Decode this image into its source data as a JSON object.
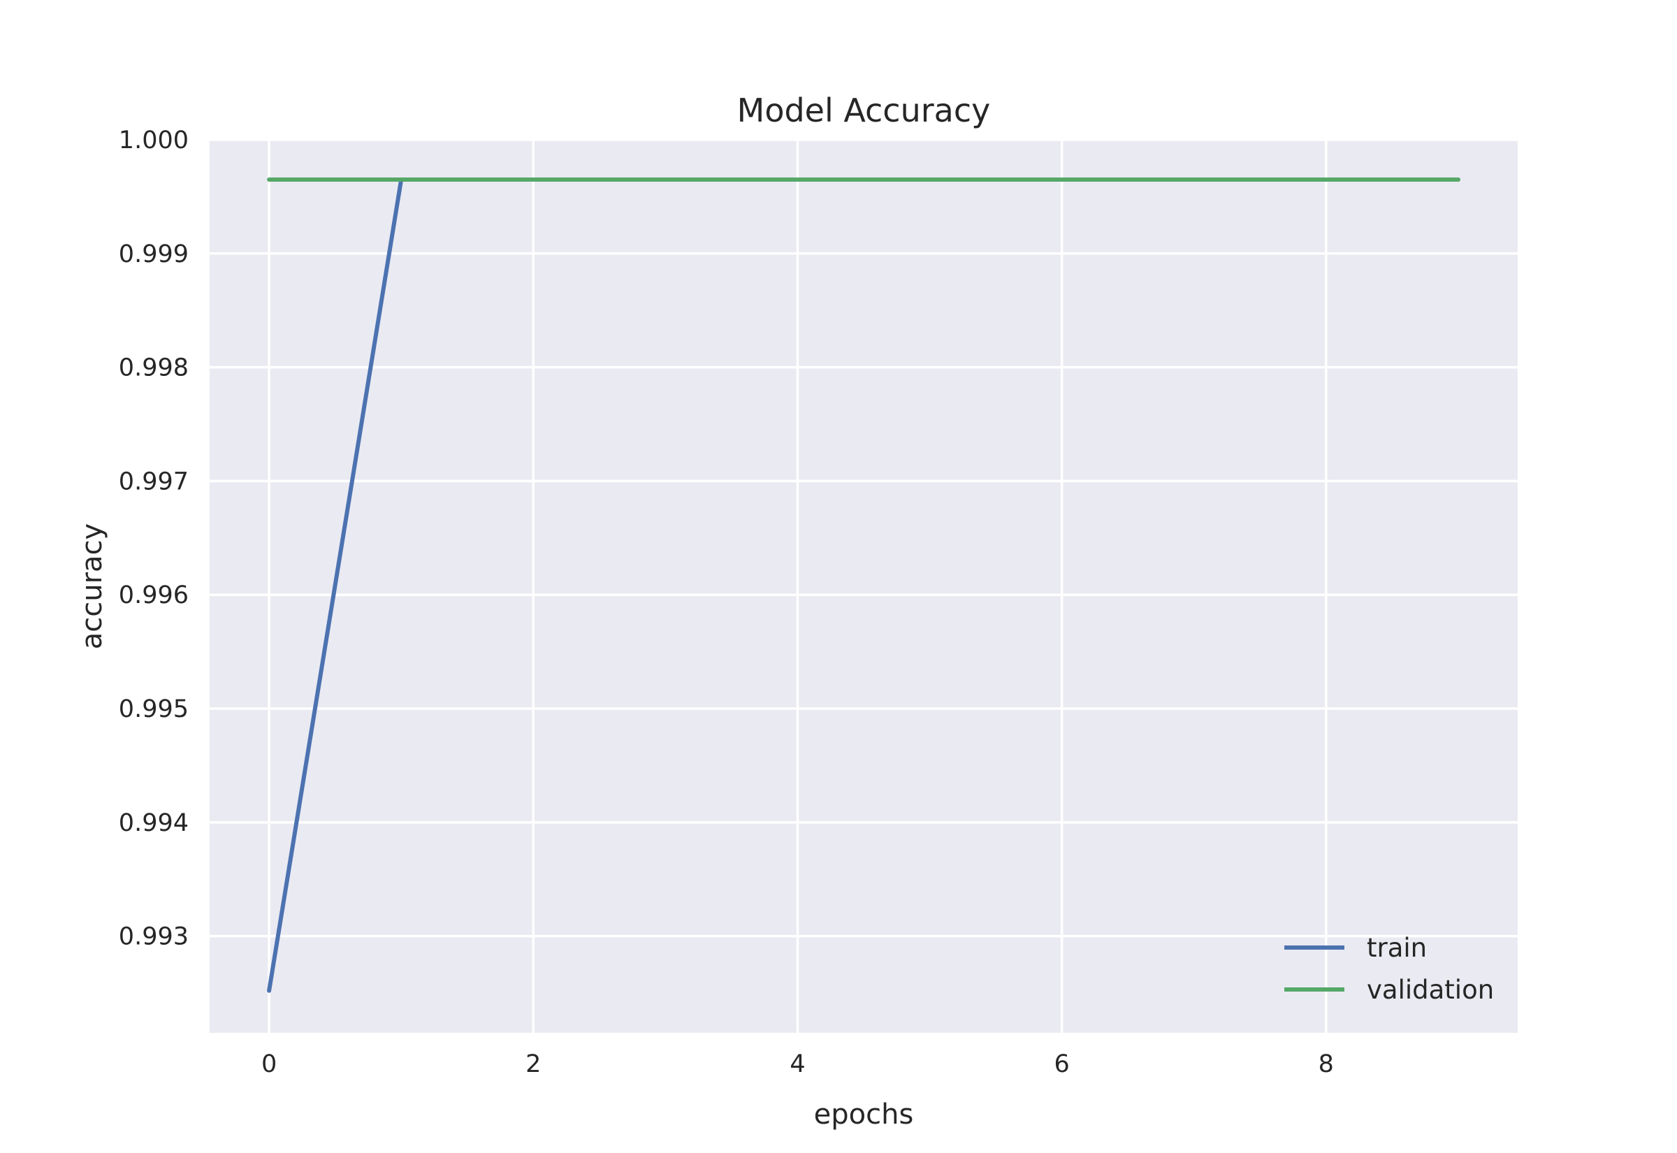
{
  "chart_data": {
    "type": "line",
    "title": "Model Accuracy",
    "xlabel": "epochs",
    "ylabel": "accuracy",
    "x": [
      0,
      1,
      2,
      3,
      4,
      5,
      6,
      7,
      8,
      9
    ],
    "xlim": [
      -0.45,
      9.45
    ],
    "ylim": [
      0.99215,
      1.0
    ],
    "xticks": [
      0,
      2,
      4,
      6,
      8
    ],
    "yticks": [
      0.993,
      0.994,
      0.995,
      0.996,
      0.997,
      0.998,
      0.999,
      1.0
    ],
    "ytick_labels": [
      "0.993",
      "0.994",
      "0.995",
      "0.996",
      "0.997",
      "0.998",
      "0.999",
      "1.000"
    ],
    "grid": true,
    "legend_position": "lower-right",
    "series": [
      {
        "name": "train",
        "color": "#4c72b0",
        "values": [
          0.99252,
          0.99965,
          0.99965,
          0.99965,
          0.99965,
          0.99965,
          0.99965,
          0.99965,
          0.99965,
          0.99965
        ]
      },
      {
        "name": "validation",
        "color": "#55a868",
        "values": [
          0.99965,
          0.99965,
          0.99965,
          0.99965,
          0.99965,
          0.99965,
          0.99965,
          0.99965,
          0.99965,
          0.99965
        ]
      }
    ],
    "colors": {
      "plot_background": "#eaeaf2",
      "grid": "#ffffff"
    }
  }
}
